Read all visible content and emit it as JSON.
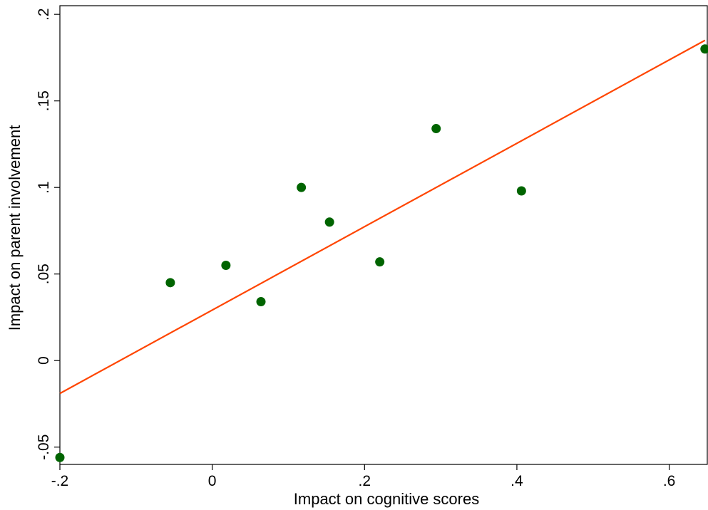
{
  "chart_data": {
    "type": "scatter",
    "title": "",
    "xlabel": "Impact on cognitive scores",
    "ylabel": "Impact on parent involvement",
    "xlim": [
      -0.2,
      0.65
    ],
    "ylim": [
      -0.06,
      0.205
    ],
    "xticks": [
      {
        "value": -0.2,
        "label": "-.2"
      },
      {
        "value": 0,
        "label": "0"
      },
      {
        "value": 0.2,
        "label": ".2"
      },
      {
        "value": 0.4,
        "label": ".4"
      },
      {
        "value": 0.6,
        "label": ".6"
      }
    ],
    "yticks": [
      {
        "value": -0.05,
        "label": "-.05"
      },
      {
        "value": 0,
        "label": "0"
      },
      {
        "value": 0.05,
        "label": ".05"
      },
      {
        "value": 0.1,
        "label": ".1"
      },
      {
        "value": 0.15,
        "label": ".15"
      },
      {
        "value": 0.2,
        "label": ".2"
      }
    ],
    "grid": false,
    "legend": "none",
    "series": [
      {
        "type": "scatter",
        "color": "#006400",
        "points": [
          {
            "x": -0.2,
            "y": -0.056
          },
          {
            "x": -0.055,
            "y": 0.045
          },
          {
            "x": 0.018,
            "y": 0.055
          },
          {
            "x": 0.064,
            "y": 0.034
          },
          {
            "x": 0.117,
            "y": 0.1
          },
          {
            "x": 0.154,
            "y": 0.08
          },
          {
            "x": 0.22,
            "y": 0.057
          },
          {
            "x": 0.294,
            "y": 0.134
          },
          {
            "x": 0.406,
            "y": 0.098
          },
          {
            "x": 0.647,
            "y": 0.18
          }
        ]
      },
      {
        "type": "line",
        "color": "#ff4500",
        "points": [
          {
            "x": -0.2,
            "y": -0.019
          },
          {
            "x": 0.647,
            "y": 0.185
          }
        ]
      }
    ]
  }
}
